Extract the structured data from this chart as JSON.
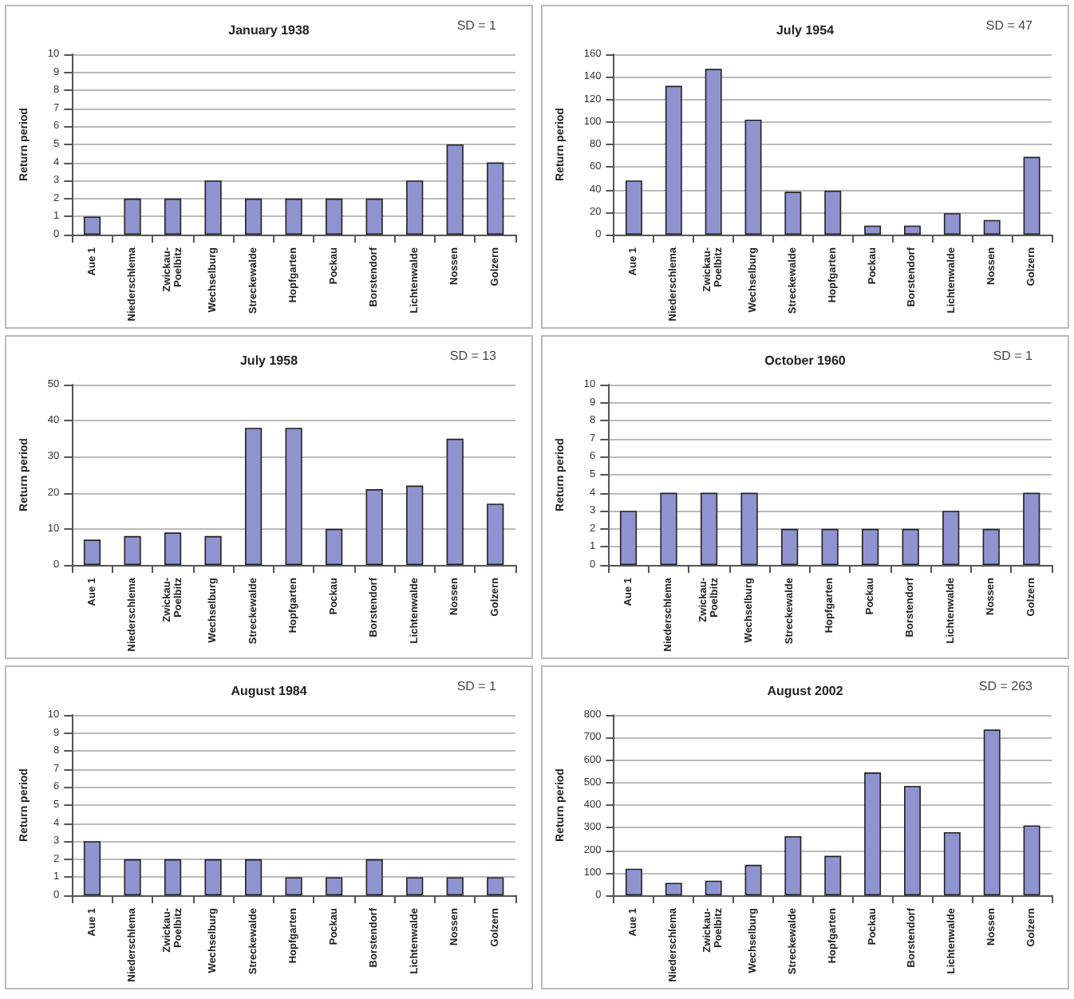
{
  "chart_data": [
    {
      "type": "bar",
      "title": "January 1938",
      "annotations": [
        "SD = 1"
      ],
      "ylabel": "Return period",
      "categories": [
        "Aue 1",
        "Niederschlema",
        "Zwickau-Poelbitz",
        "Wechselburg",
        "Streckewalde",
        "Hopfgarten",
        "Pockau",
        "Borstendorf",
        "Lichtenwalde",
        "Nossen",
        "Golzern"
      ],
      "values": [
        1,
        2,
        2,
        3,
        2,
        2,
        2,
        2,
        3,
        5,
        4
      ],
      "color": "#8f94d0",
      "ylim": [
        0,
        10
      ],
      "yticks": [
        0,
        1,
        2,
        3,
        4,
        5,
        6,
        7,
        8,
        9,
        10
      ],
      "grid": "y"
    },
    {
      "type": "bar",
      "title": "July 1954",
      "annotations": [
        "SD = 47"
      ],
      "ylabel": "Return period",
      "categories": [
        "Aue 1",
        "Niederschlema",
        "Zwickau-Poelbitz",
        "Wechselburg",
        "Streckewalde",
        "Hopfgarten",
        "Pockau",
        "Borstendorf",
        "Lichtenwalde",
        "Nossen",
        "Golzern"
      ],
      "values": [
        48,
        132,
        147,
        102,
        38,
        39,
        8,
        8,
        19,
        13,
        69
      ],
      "color": "#8f94d0",
      "ylim": [
        0,
        160
      ],
      "yticks": [
        0,
        20,
        40,
        60,
        80,
        100,
        120,
        140,
        160
      ],
      "grid": "y"
    },
    {
      "type": "bar",
      "title": "July 1958",
      "annotations": [
        "SD = 13"
      ],
      "ylabel": "Return period",
      "categories": [
        "Aue 1",
        "Niederschlema",
        "Zwickau-Poelbitz",
        "Wechselburg",
        "Streckewalde",
        "Hopfgarten",
        "Pockau",
        "Borstendorf",
        "Lichtenwalde",
        "Nossen",
        "Golzern"
      ],
      "values": [
        7,
        8,
        9,
        8,
        38,
        38,
        10,
        21,
        22,
        35,
        17
      ],
      "color": "#8f94d0",
      "ylim": [
        0,
        50
      ],
      "yticks": [
        0,
        10,
        20,
        30,
        40,
        50
      ],
      "grid": "y"
    },
    {
      "type": "bar",
      "title": "October 1960",
      "annotations": [
        "SD = 1"
      ],
      "ylabel": "Return period",
      "categories": [
        "Aue 1",
        "Niederschlema",
        "Zwickau-Poelbitz",
        "Wechselburg",
        "Streckewalde",
        "Hopfgarten",
        "Pockau",
        "Borstendorf",
        "Lichtenwalde",
        "Nossen",
        "Golzern"
      ],
      "values": [
        3,
        4,
        4,
        4,
        2,
        2,
        2,
        2,
        3,
        2,
        4
      ],
      "color": "#8f94d0",
      "ylim": [
        0,
        10
      ],
      "yticks": [
        0,
        1,
        2,
        3,
        4,
        5,
        6,
        7,
        8,
        9,
        10
      ],
      "grid": "y"
    },
    {
      "type": "bar",
      "title": "August 1984",
      "annotations": [
        "SD = 1"
      ],
      "ylabel": "Return period",
      "categories": [
        "Aue 1",
        "Niederschlema",
        "Zwickau-Poelbitz",
        "Wechselburg",
        "Streckewalde",
        "Hopfgarten",
        "Pockau",
        "Borstendorf",
        "Lichtenwalde",
        "Nossen",
        "Golzern"
      ],
      "values": [
        3,
        2,
        2,
        2,
        2,
        1,
        1,
        2,
        1,
        1,
        1
      ],
      "color": "#8f94d0",
      "ylim": [
        0,
        10
      ],
      "yticks": [
        0,
        1,
        2,
        3,
        4,
        5,
        6,
        7,
        8,
        9,
        10
      ],
      "grid": "y"
    },
    {
      "type": "bar",
      "title": "August 2002",
      "annotations": [
        "SD = 263"
      ],
      "ylabel": "Return period",
      "categories": [
        "Aue 1",
        "Niederschlema",
        "Zwickau-Poelbitz",
        "Wechselburg",
        "Streckewalde",
        "Hopfgarten",
        "Pockau",
        "Borstendorf",
        "Lichtenwalde",
        "Nossen",
        "Golzern"
      ],
      "values": [
        118,
        55,
        65,
        135,
        262,
        175,
        545,
        485,
        280,
        735,
        310
      ],
      "color": "#8f94d0",
      "ylim": [
        0,
        800
      ],
      "yticks": [
        0,
        100,
        200,
        300,
        400,
        500,
        600,
        700,
        800
      ],
      "grid": "y"
    }
  ]
}
